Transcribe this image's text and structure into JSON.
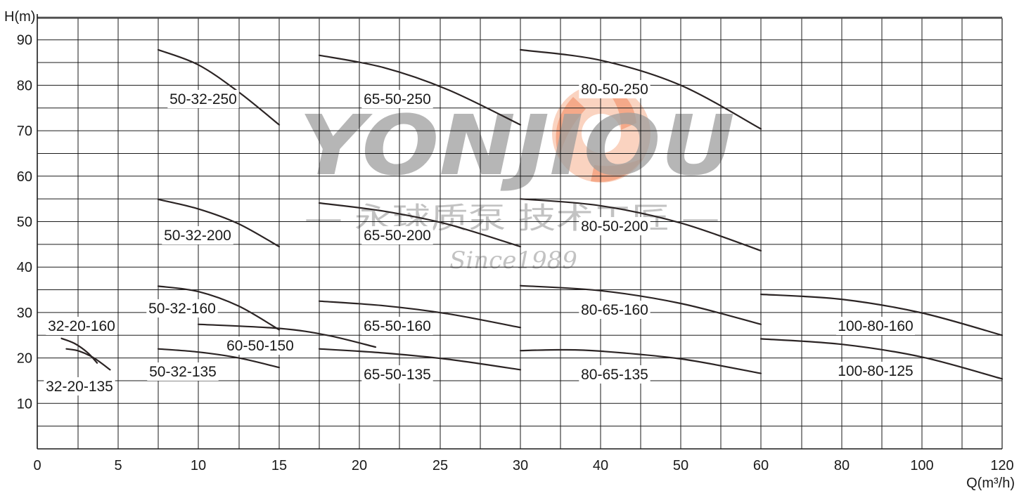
{
  "chart_data": {
    "type": "line",
    "xlabel": "Q(m³/h)",
    "ylabel": "H(m)",
    "x_ticks": [
      "0",
      "5",
      "10",
      "15",
      "20",
      "25",
      "30",
      "40",
      "50",
      "60",
      "80",
      "100",
      "120"
    ],
    "y_ticks": [
      "10",
      "20",
      "30",
      "40",
      "50",
      "60",
      "70",
      "80",
      "90"
    ],
    "xlim": [
      0,
      120
    ],
    "ylim": [
      0,
      95
    ],
    "x_scale": "piecewise",
    "grid": true,
    "series": [
      {
        "name": "32-20-160",
        "x": [
          1.5,
          2.3,
          3.1,
          3.7
        ],
        "y": [
          24.3,
          23.2,
          21.2,
          18.9
        ]
      },
      {
        "name": "32-20-135",
        "x": [
          1.8,
          2.6,
          3.5,
          4.5
        ],
        "y": [
          22.0,
          21.5,
          20.0,
          17.4
        ]
      },
      {
        "name": "50-32-250",
        "x": [
          7.5,
          10,
          12.5,
          15
        ],
        "y": [
          87.8,
          84.5,
          78.5,
          71.3
        ]
      },
      {
        "name": "50-32-200",
        "x": [
          7.5,
          10,
          12.5,
          15
        ],
        "y": [
          54.9,
          52.8,
          49.5,
          44.5
        ]
      },
      {
        "name": "50-32-160",
        "x": [
          7.5,
          10,
          12.5,
          15
        ],
        "y": [
          35.8,
          34.6,
          31.4,
          26.2
        ]
      },
      {
        "name": "60-50-150",
        "x": [
          10,
          15,
          18,
          21
        ],
        "y": [
          27.4,
          26.5,
          25.0,
          22.4
        ]
      },
      {
        "name": "50-32-135",
        "x": [
          7.5,
          10,
          12.5,
          15
        ],
        "y": [
          22.0,
          21.3,
          20.0,
          17.9
        ]
      },
      {
        "name": "65-50-250",
        "x": [
          17.5,
          21.5,
          25.5,
          30
        ],
        "y": [
          86.6,
          83.9,
          79.0,
          71.3
        ]
      },
      {
        "name": "65-50-200",
        "x": [
          17.5,
          21.5,
          25.5,
          30
        ],
        "y": [
          54.1,
          52.3,
          49.4,
          44.5
        ]
      },
      {
        "name": "65-50-160",
        "x": [
          17.5,
          21.5,
          25.5,
          30
        ],
        "y": [
          32.5,
          31.5,
          29.7,
          26.7
        ]
      },
      {
        "name": "65-50-135",
        "x": [
          17.5,
          21.5,
          25.5,
          30
        ],
        "y": [
          22.0,
          21.1,
          19.7,
          17.4
        ]
      },
      {
        "name": "80-50-250",
        "x": [
          30,
          40,
          50,
          60
        ],
        "y": [
          87.8,
          85.5,
          80.0,
          70.4
        ]
      },
      {
        "name": "80-50-200",
        "x": [
          30,
          40,
          50,
          60
        ],
        "y": [
          55.0,
          53.5,
          49.7,
          43.6
        ]
      },
      {
        "name": "80-65-160",
        "x": [
          30,
          40,
          50,
          60
        ],
        "y": [
          35.9,
          34.8,
          32.0,
          27.4
        ]
      },
      {
        "name": "80-65-135",
        "x": [
          30,
          35,
          40,
          50,
          60
        ],
        "y": [
          21.6,
          21.8,
          21.5,
          19.8,
          16.6
        ]
      },
      {
        "name": "100-80-160",
        "x": [
          60,
          80,
          100,
          120
        ],
        "y": [
          34.0,
          32.9,
          29.9,
          25.0
        ]
      },
      {
        "name": "100-80-125",
        "x": [
          60,
          80,
          100,
          120
        ],
        "y": [
          24.2,
          23.0,
          20.2,
          15.4
        ]
      }
    ],
    "watermark": {
      "brand": "YONJIOU",
      "tagline": "— 永球质泵 技术工匠 —",
      "since": "Since1989"
    }
  },
  "colors": {
    "grid": "#1a1a1a",
    "curve": "#2b2424",
    "watermark_gray": "#8c8c8c",
    "watermark_orange": "#f4a079"
  }
}
